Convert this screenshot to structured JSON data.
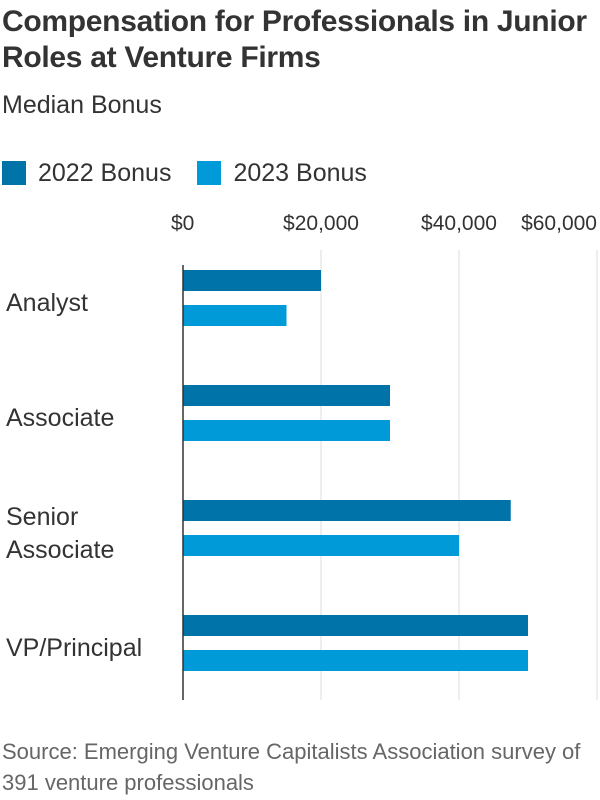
{
  "title": "Compensation for Professionals in Junior Roles at Venture Firms",
  "subtitle": "Median Bonus",
  "source": "Source: Emerging Venture Capitalists Association survey of 391 venture professionals",
  "colors": {
    "series_2022": "#0073a8",
    "series_2023": "#009ad9",
    "grid": "#dddddd",
    "axis": "#333333"
  },
  "chart_data": {
    "type": "bar",
    "orientation": "horizontal",
    "title": "Compensation for Professionals in Junior Roles at Venture Firms",
    "subtitle": "Median Bonus",
    "categories": [
      "Analyst",
      "Associate",
      "Senior Associate",
      "VP/Principal"
    ],
    "series": [
      {
        "name": "2022 Bonus",
        "values": [
          20000,
          30000,
          47500,
          50000
        ]
      },
      {
        "name": "2023 Bonus",
        "values": [
          15000,
          30000,
          40000,
          50000
        ]
      }
    ],
    "xlim": [
      0,
      60000
    ],
    "xticks": [
      0,
      20000,
      40000,
      60000
    ],
    "xtick_labels": [
      "$0",
      "$20,000",
      "$40,000",
      "$60,000"
    ],
    "grid": true,
    "legend_position": "top-left"
  }
}
